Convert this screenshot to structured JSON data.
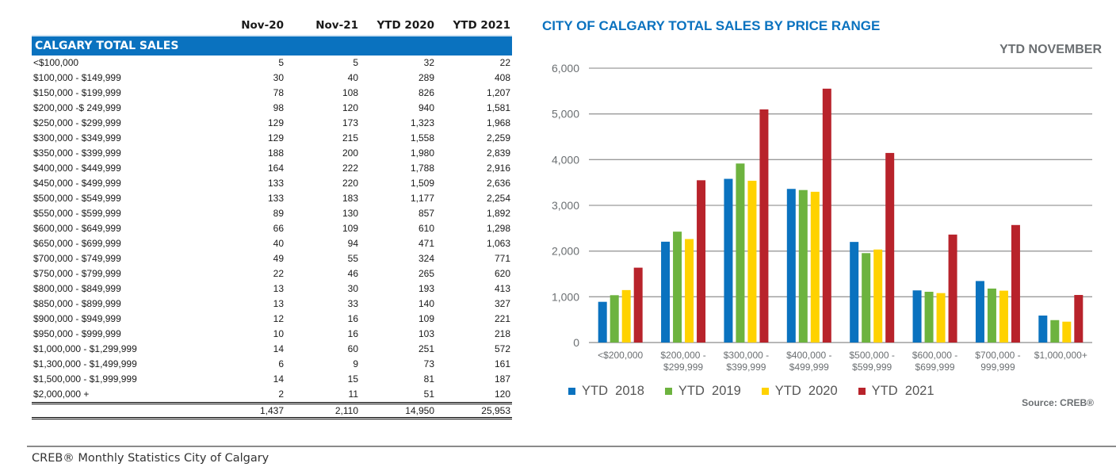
{
  "table": {
    "columns": [
      "",
      "Nov-20",
      "Nov-21",
      "YTD 2020",
      "YTD 2021"
    ],
    "section_title": "CALGARY TOTAL SALES",
    "rows": [
      {
        "label": "<$100,000",
        "values": [
          "5",
          "5",
          "32",
          "22"
        ]
      },
      {
        "label": "$100,000 - $149,999",
        "values": [
          "30",
          "40",
          "289",
          "408"
        ]
      },
      {
        "label": "$150,000 - $199,999",
        "values": [
          "78",
          "108",
          "826",
          "1,207"
        ]
      },
      {
        "label": "$200,000 -$ 249,999",
        "values": [
          "98",
          "120",
          "940",
          "1,581"
        ]
      },
      {
        "label": "$250,000 - $299,999",
        "values": [
          "129",
          "173",
          "1,323",
          "1,968"
        ]
      },
      {
        "label": "$300,000 - $349,999",
        "values": [
          "129",
          "215",
          "1,558",
          "2,259"
        ]
      },
      {
        "label": "$350,000 - $399,999",
        "values": [
          "188",
          "200",
          "1,980",
          "2,839"
        ]
      },
      {
        "label": "$400,000 - $449,999",
        "values": [
          "164",
          "222",
          "1,788",
          "2,916"
        ]
      },
      {
        "label": "$450,000 - $499,999",
        "values": [
          "133",
          "220",
          "1,509",
          "2,636"
        ]
      },
      {
        "label": "$500,000 - $549,999",
        "values": [
          "133",
          "183",
          "1,177",
          "2,254"
        ]
      },
      {
        "label": "$550,000 - $599,999",
        "values": [
          "89",
          "130",
          "857",
          "1,892"
        ]
      },
      {
        "label": "$600,000 - $649,999",
        "values": [
          "66",
          "109",
          "610",
          "1,298"
        ]
      },
      {
        "label": "$650,000 - $699,999",
        "values": [
          "40",
          "94",
          "471",
          "1,063"
        ]
      },
      {
        "label": "$700,000 - $749,999",
        "values": [
          "49",
          "55",
          "324",
          "771"
        ]
      },
      {
        "label": "$750,000 - $799,999",
        "values": [
          "22",
          "46",
          "265",
          "620"
        ]
      },
      {
        "label": "$800,000 - $849,999",
        "values": [
          "13",
          "30",
          "193",
          "413"
        ]
      },
      {
        "label": "$850,000 - $899,999",
        "values": [
          "13",
          "33",
          "140",
          "327"
        ]
      },
      {
        "label": "$900,000 - $949,999",
        "values": [
          "12",
          "16",
          "109",
          "221"
        ]
      },
      {
        "label": "$950,000 - $999,999",
        "values": [
          "10",
          "16",
          "103",
          "218"
        ]
      },
      {
        "label": "$1,000,000 - $1,299,999",
        "values": [
          "14",
          "60",
          "251",
          "572"
        ]
      },
      {
        "label": "$1,300,000 - $1,499,999",
        "values": [
          "6",
          "9",
          "73",
          "161"
        ]
      },
      {
        "label": "$1,500,000 - $1,999,999",
        "values": [
          "14",
          "15",
          "81",
          "187"
        ]
      },
      {
        "label": "$2,000,000 +",
        "values": [
          "2",
          "11",
          "51",
          "120"
        ]
      }
    ],
    "totals": [
      "1,437",
      "2,110",
      "14,950",
      "25,953"
    ]
  },
  "chart_data": {
    "type": "bar",
    "title": "CITY OF CALGARY TOTAL SALES BY PRICE RANGE",
    "subtitle": "YTD  NOVEMBER",
    "xlabel": "",
    "ylabel": "",
    "ylim": [
      0,
      6000
    ],
    "yticks": [
      0,
      1000,
      2000,
      3000,
      4000,
      5000,
      6000
    ],
    "ytick_labels": [
      "0",
      "1,000",
      "2,000",
      "3,000",
      "4,000",
      "5,000",
      "6,000"
    ],
    "grid": true,
    "legend_position": "bottom",
    "categories": [
      [
        "<$200,000"
      ],
      [
        "$200,000 -",
        "$299,999"
      ],
      [
        "$300,000 -",
        "$399,999"
      ],
      [
        "$400,000 -",
        "$499,999"
      ],
      [
        "$500,000 -",
        "$599,999"
      ],
      [
        "$600,000 -",
        "$699,999"
      ],
      [
        "$700,000 -",
        "999,999"
      ],
      [
        "$1,000,000+"
      ]
    ],
    "series": [
      {
        "name": "YTD  2018",
        "color": "#0a72bf",
        "values": [
          890,
          2205,
          3580,
          3360,
          2200,
          1140,
          1345,
          590
        ]
      },
      {
        "name": "YTD  2019",
        "color": "#6db33f",
        "values": [
          1035,
          2425,
          3915,
          3335,
          1955,
          1110,
          1180,
          490
        ]
      },
      {
        "name": "YTD  2020",
        "color": "#ffd200",
        "values": [
          1147,
          2263,
          3538,
          3297,
          2034,
          1081,
          1134,
          456
        ]
      },
      {
        "name": "YTD  2021",
        "color": "#b8232b",
        "values": [
          1637,
          3549,
          5098,
          5552,
          4146,
          2361,
          2570,
          1040
        ]
      }
    ],
    "source": "Source: CREB®"
  },
  "footer": {
    "text": "CREB® Monthly Statistics City of Calgary"
  }
}
